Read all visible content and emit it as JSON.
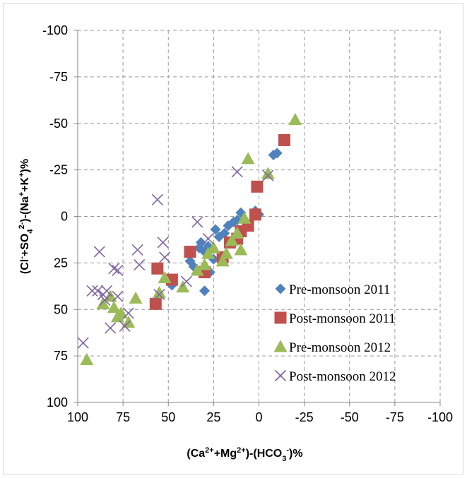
{
  "chart_data": {
    "type": "scatter",
    "title": "",
    "xlabel": {
      "parts": [
        {
          "t": "(Ca"
        },
        {
          "t": "2+",
          "sup": true
        },
        {
          "t": "+Mg"
        },
        {
          "t": "2+",
          "sup": true
        },
        {
          "t": ")-(HCO"
        },
        {
          "t": "3",
          "sub": true
        },
        {
          "t": "-",
          "sup": true
        },
        {
          "t": ")%"
        }
      ]
    },
    "ylabel": {
      "parts": [
        {
          "t": "(Cl"
        },
        {
          "t": "-",
          "sup": true
        },
        {
          "t": "+SO"
        },
        {
          "t": "4",
          "sub": true
        },
        {
          "t": "2-",
          "sup": true
        },
        {
          "t": ")-(Na"
        },
        {
          "t": "+",
          "sup": true
        },
        {
          "t": "+K"
        },
        {
          "t": "+",
          "sup": true
        },
        {
          "t": ")%"
        }
      ]
    },
    "xlim": [
      100,
      -100
    ],
    "ylim": [
      100,
      -100
    ],
    "x_reversed": true,
    "y_reversed": true,
    "xticks": [
      "100",
      "75",
      "50",
      "25",
      "0",
      "-25",
      "-50",
      "-75",
      "-100"
    ],
    "yticks": [
      "-100",
      "-75",
      "-50",
      "-25",
      "0",
      "25",
      "50",
      "75",
      "100"
    ],
    "grid": true,
    "legend_position": "bottom-right",
    "series": [
      {
        "name": "Pre-monsoon 2011",
        "marker": "diamond",
        "color": "#4f81bd",
        "points": [
          [
            -10,
            -34
          ],
          [
            -8,
            -33
          ],
          [
            2,
            -3
          ],
          [
            0,
            -1
          ],
          [
            10,
            -2
          ],
          [
            12,
            2
          ],
          [
            14,
            3
          ],
          [
            17,
            5
          ],
          [
            19,
            9
          ],
          [
            22,
            11
          ],
          [
            24,
            7
          ],
          [
            28,
            16
          ],
          [
            30,
            19
          ],
          [
            32,
            14
          ],
          [
            36,
            27
          ],
          [
            30,
            40
          ],
          [
            48,
            37
          ],
          [
            38,
            24
          ],
          [
            33,
            17
          ],
          [
            25,
            23
          ],
          [
            27,
            30
          ],
          [
            12,
            12
          ]
        ]
      },
      {
        "name": "Post-monsoon 2011",
        "marker": "square",
        "color": "#c0504d",
        "points": [
          [
            -14,
            -41
          ],
          [
            1,
            -16
          ],
          [
            2,
            -1
          ],
          [
            6,
            5
          ],
          [
            10,
            8
          ],
          [
            12,
            12
          ],
          [
            16,
            14
          ],
          [
            20,
            22
          ],
          [
            30,
            30
          ],
          [
            38,
            19
          ],
          [
            48,
            34
          ],
          [
            56,
            28
          ],
          [
            57,
            47
          ]
        ]
      },
      {
        "name": "Pre-monsoon 2012",
        "marker": "triangle",
        "color": "#9bbb59",
        "points": [
          [
            -20,
            -52
          ],
          [
            -5,
            -23
          ],
          [
            6,
            -31
          ],
          [
            8,
            1
          ],
          [
            10,
            18
          ],
          [
            12,
            9
          ],
          [
            15,
            13
          ],
          [
            18,
            20
          ],
          [
            20,
            24
          ],
          [
            25,
            17
          ],
          [
            28,
            20
          ],
          [
            30,
            26
          ],
          [
            34,
            29
          ],
          [
            42,
            38
          ],
          [
            52,
            33
          ],
          [
            55,
            41
          ],
          [
            68,
            44
          ],
          [
            72,
            57
          ],
          [
            76,
            52
          ],
          [
            78,
            54
          ],
          [
            80,
            49
          ],
          [
            82,
            43
          ],
          [
            86,
            47
          ],
          [
            95,
            77
          ]
        ]
      },
      {
        "name": "Post-monsoon 2012",
        "marker": "x",
        "color": "#8064a2",
        "points": [
          [
            -5,
            -22
          ],
          [
            12,
            -24
          ],
          [
            28,
            12
          ],
          [
            34,
            3
          ],
          [
            40,
            35
          ],
          [
            52,
            22
          ],
          [
            53,
            14
          ],
          [
            55,
            42
          ],
          [
            56,
            -9
          ],
          [
            66,
            26
          ],
          [
            67,
            18
          ],
          [
            72,
            52
          ],
          [
            74,
            59
          ],
          [
            78,
            29
          ],
          [
            78,
            43
          ],
          [
            80,
            28
          ],
          [
            82,
            60
          ],
          [
            84,
            40
          ],
          [
            85,
            45
          ],
          [
            86,
            42
          ],
          [
            88,
            19
          ],
          [
            89,
            40
          ],
          [
            92,
            40
          ],
          [
            97,
            68
          ]
        ]
      }
    ]
  }
}
